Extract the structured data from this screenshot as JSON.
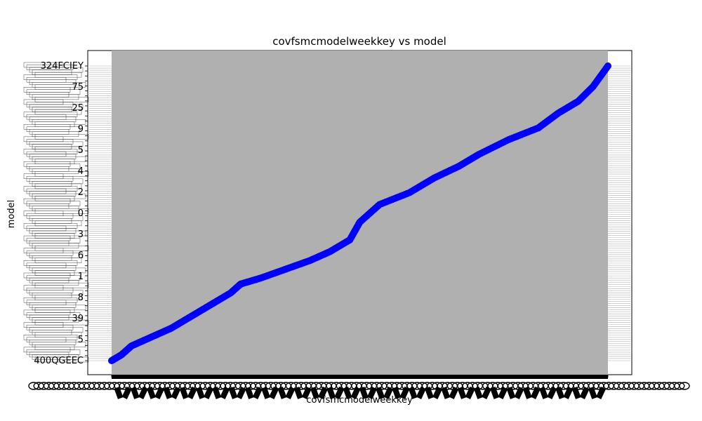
{
  "chart_data": {
    "type": "scatter",
    "title": "covfsmcmodelweekkey vs model",
    "xlabel": "covfsmcmodelweekkey",
    "ylabel": "model",
    "marker_color": "#0000ff",
    "grid": true,
    "grid_color": "#b0b0b0",
    "y_tick_labels_legible": [
      "324FCIEY",
      "75",
      "25",
      "9",
      "5",
      "4",
      "2",
      "0",
      "3",
      "6",
      "1",
      "8",
      "39",
      "5",
      "400QGEEC"
    ],
    "x_range": [
      0,
      1
    ],
    "y_range": [
      0,
      1
    ],
    "points_relative": [
      [
        0.0,
        0.0
      ],
      [
        0.02,
        0.02
      ],
      [
        0.04,
        0.05
      ],
      [
        0.08,
        0.08
      ],
      [
        0.12,
        0.11
      ],
      [
        0.16,
        0.15
      ],
      [
        0.2,
        0.19
      ],
      [
        0.24,
        0.23
      ],
      [
        0.26,
        0.26
      ],
      [
        0.3,
        0.28
      ],
      [
        0.35,
        0.31
      ],
      [
        0.4,
        0.34
      ],
      [
        0.44,
        0.37
      ],
      [
        0.48,
        0.41
      ],
      [
        0.5,
        0.47
      ],
      [
        0.54,
        0.53
      ],
      [
        0.6,
        0.57
      ],
      [
        0.65,
        0.62
      ],
      [
        0.7,
        0.66
      ],
      [
        0.74,
        0.7
      ],
      [
        0.8,
        0.75
      ],
      [
        0.86,
        0.79
      ],
      [
        0.9,
        0.84
      ],
      [
        0.94,
        0.88
      ],
      [
        0.97,
        0.93
      ],
      [
        1.0,
        1.0
      ]
    ]
  }
}
